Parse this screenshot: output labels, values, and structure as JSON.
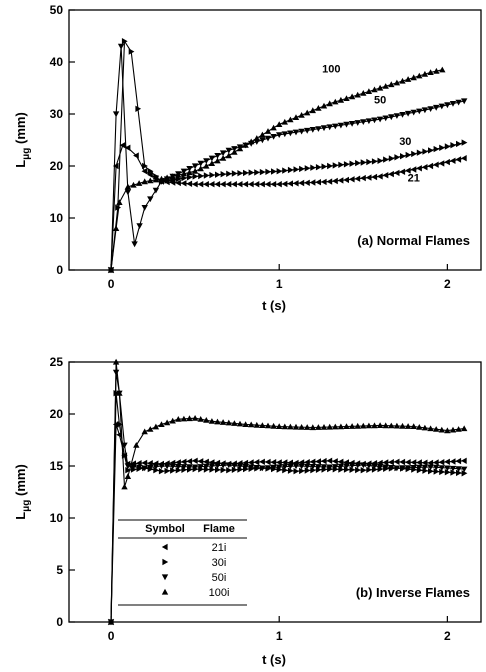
{
  "chart_data": [
    {
      "type": "line",
      "annotation": "(a) Normal Flames",
      "xlabel": "t (s)",
      "ylabel_main": "L",
      "ylabel_sub": "μg",
      "ylabel_unit": "(mm)",
      "xlim": [
        -0.25,
        2.2
      ],
      "ylim": [
        0,
        50
      ],
      "xticks": [
        0,
        1,
        2
      ],
      "yticks": [
        0,
        10,
        20,
        30,
        40,
        50
      ],
      "grid": false,
      "series": [
        {
          "name": "100",
          "marker": "up",
          "x": [
            0,
            0.03,
            0.05,
            0.1,
            0.2,
            0.3,
            0.5,
            0.7,
            1.0,
            1.3,
            1.6,
            1.9,
            1.97
          ],
          "y": [
            0,
            8,
            13,
            16,
            17,
            17.5,
            19,
            22,
            28,
            32,
            35,
            38,
            38.5
          ]
        },
        {
          "name": "50",
          "marker": "down",
          "x": [
            0,
            0.03,
            0.06,
            0.1,
            0.14,
            0.2,
            0.3,
            0.5,
            0.7,
            1.0,
            1.3,
            1.6,
            1.9,
            2.1
          ],
          "y": [
            0,
            30,
            43,
            15,
            5,
            12,
            17,
            20,
            23,
            26,
            27.5,
            29,
            31,
            32.5
          ]
        },
        {
          "name": "30",
          "marker": "right",
          "x": [
            0,
            0.04,
            0.08,
            0.12,
            0.2,
            0.3,
            0.5,
            0.7,
            1.0,
            1.3,
            1.6,
            1.9,
            2.1
          ],
          "y": [
            0,
            12,
            44,
            42,
            20,
            17,
            18,
            18.5,
            19,
            20,
            21,
            23,
            24.5
          ]
        },
        {
          "name": "21",
          "marker": "left",
          "x": [
            0,
            0.03,
            0.07,
            0.1,
            0.15,
            0.2,
            0.3,
            0.5,
            0.7,
            1.0,
            1.3,
            1.6,
            1.9,
            2.1
          ],
          "y": [
            0,
            20,
            24,
            23.5,
            22,
            19,
            17,
            16.5,
            16.5,
            16.5,
            17,
            18,
            20,
            21.5
          ]
        }
      ],
      "labels": [
        {
          "text": "100",
          "x": 1.31,
          "y": 38
        },
        {
          "text": "50",
          "x": 1.6,
          "y": 32
        },
        {
          "text": "30",
          "x": 1.75,
          "y": 24
        },
        {
          "text": "21",
          "x": 1.8,
          "y": 17
        }
      ]
    },
    {
      "type": "line",
      "annotation": "(b) Inverse Flames",
      "xlabel": "t (s)",
      "ylabel_main": "L",
      "ylabel_sub": "μg",
      "ylabel_unit": "(mm)",
      "xlim": [
        -0.25,
        2.2
      ],
      "ylim": [
        0,
        25
      ],
      "xticks": [
        0,
        1,
        2
      ],
      "yticks": [
        0,
        5,
        10,
        15,
        20,
        25
      ],
      "grid": false,
      "series": [
        {
          "name": "21i",
          "marker": "left",
          "x": [
            0,
            0.03,
            0.05,
            0.08,
            0.1,
            0.2,
            0.3,
            0.5,
            0.7,
            0.9,
            1.1,
            1.3,
            1.5,
            1.7,
            1.9,
            2.1
          ],
          "y": [
            0,
            19,
            18,
            16,
            15.2,
            15.3,
            15.2,
            15.5,
            15.2,
            15.4,
            15.3,
            15.5,
            15.2,
            15.4,
            15.3,
            15.5
          ]
        },
        {
          "name": "30i",
          "marker": "right",
          "x": [
            0,
            0.03,
            0.05,
            0.08,
            0.1,
            0.2,
            0.3,
            0.5,
            0.7,
            0.9,
            1.1,
            1.3,
            1.5,
            1.7,
            1.9,
            2.1
          ],
          "y": [
            0,
            22,
            19,
            16,
            14.6,
            14.8,
            14.5,
            14.7,
            14.6,
            14.8,
            14.5,
            14.7,
            14.6,
            14.8,
            14.5,
            14.3
          ]
        },
        {
          "name": "50i",
          "marker": "down",
          "x": [
            0,
            0.03,
            0.05,
            0.08,
            0.1,
            0.2,
            0.3,
            0.5,
            0.7,
            0.9,
            1.1,
            1.3,
            1.5,
            1.7,
            1.9,
            2.1
          ],
          "y": [
            0,
            24,
            22,
            17,
            15,
            14.8,
            15,
            14.9,
            15.1,
            14.8,
            15,
            14.9,
            15.1,
            14.8,
            14.9,
            14.7
          ]
        },
        {
          "name": "100i",
          "marker": "up",
          "x": [
            0,
            0.03,
            0.05,
            0.08,
            0.1,
            0.15,
            0.2,
            0.3,
            0.4,
            0.5,
            0.6,
            0.8,
            1.0,
            1.2,
            1.4,
            1.6,
            1.8,
            2.0,
            2.1
          ],
          "y": [
            0,
            25,
            22,
            13,
            14,
            17,
            18.3,
            19,
            19.5,
            19.6,
            19.3,
            19,
            18.8,
            18.7,
            18.8,
            18.9,
            18.8,
            18.4,
            18.6
          ]
        }
      ],
      "legend": {
        "placement": "lower-left",
        "headers": [
          "Symbol",
          "Flame"
        ],
        "entries": [
          {
            "marker": "left",
            "label": "21i"
          },
          {
            "marker": "right",
            "label": "30i"
          },
          {
            "marker": "down",
            "label": "50i"
          },
          {
            "marker": "up",
            "label": "100i"
          }
        ]
      }
    }
  ]
}
